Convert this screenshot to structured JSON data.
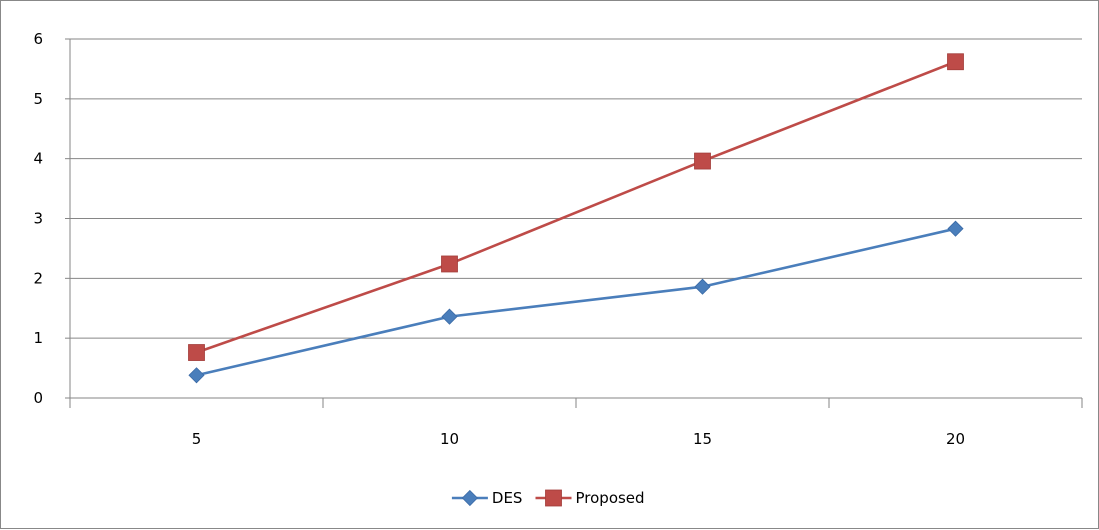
{
  "chart_data": {
    "type": "line",
    "categories": [
      "5",
      "10",
      "15",
      "20"
    ],
    "series": [
      {
        "name": "DES",
        "values": [
          0.38,
          1.36,
          1.86,
          2.83
        ],
        "color": "#4a7ebb",
        "marker": "diamond"
      },
      {
        "name": "Proposed",
        "values": [
          0.76,
          2.24,
          3.96,
          5.62
        ],
        "color": "#be4b48",
        "marker": "square"
      }
    ],
    "ylim": [
      0,
      6
    ],
    "yticks": [
      "0",
      "1",
      "2",
      "3",
      "4",
      "5",
      "6"
    ],
    "grid": true,
    "legend_position": "bottom"
  }
}
